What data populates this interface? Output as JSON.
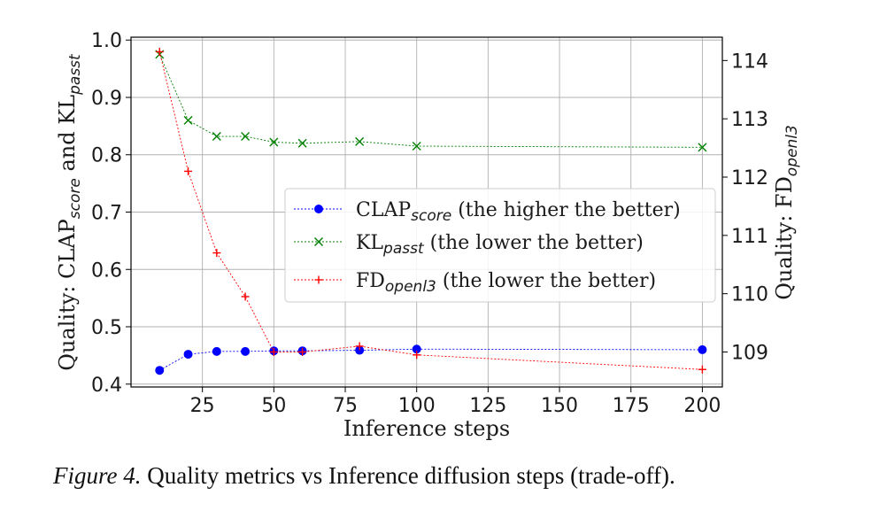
{
  "chart_data": {
    "type": "line",
    "x": [
      10,
      20,
      30,
      40,
      50,
      60,
      80,
      100,
      200
    ],
    "xlabel": "Inference steps",
    "xlim": [
      0,
      207
    ],
    "xticks": [
      25,
      50,
      75,
      100,
      125,
      150,
      175,
      200
    ],
    "ylabel_left": {
      "prefix": "Quality: CLAP",
      "sub1": "score",
      "mid": " and KL",
      "sub2": "passt"
    },
    "ylim_left": [
      0.395,
      1.005
    ],
    "yticks_left": [
      0.4,
      0.5,
      0.6,
      0.7,
      0.8,
      0.9,
      1.0
    ],
    "ylabel_right": {
      "prefix": "Quality: FD",
      "sub": "openl3"
    },
    "ylim_right": [
      108.4,
      114.4
    ],
    "yticks_right": [
      109,
      110,
      111,
      112,
      113,
      114
    ],
    "grid": true,
    "legend_position": "center-right",
    "series": [
      {
        "name": "CLAP",
        "name_sub": "score",
        "name_suffix": " (the higher the better)",
        "axis": "left",
        "marker": "circle",
        "color": "#0000ff",
        "values": [
          0.424,
          0.452,
          0.457,
          0.457,
          0.458,
          0.458,
          0.459,
          0.461,
          0.46
        ]
      },
      {
        "name": "KL",
        "name_sub": "passt",
        "name_suffix": " (the lower the better)",
        "axis": "left",
        "marker": "x",
        "color": "#008000",
        "values": [
          0.975,
          0.86,
          0.832,
          0.832,
          0.822,
          0.82,
          0.823,
          0.815,
          0.813
        ]
      },
      {
        "name": "FD",
        "name_sub": "openl3",
        "name_suffix": " (the lower the better)",
        "axis": "right",
        "marker": "plus",
        "color": "#ff0000",
        "values": [
          114.15,
          112.1,
          110.7,
          109.95,
          109.0,
          109.0,
          109.1,
          108.95,
          108.7
        ]
      }
    ]
  },
  "caption": {
    "label": "Figure 4.",
    "text": " Quality metrics vs Inference diffusion steps (trade-off)."
  }
}
